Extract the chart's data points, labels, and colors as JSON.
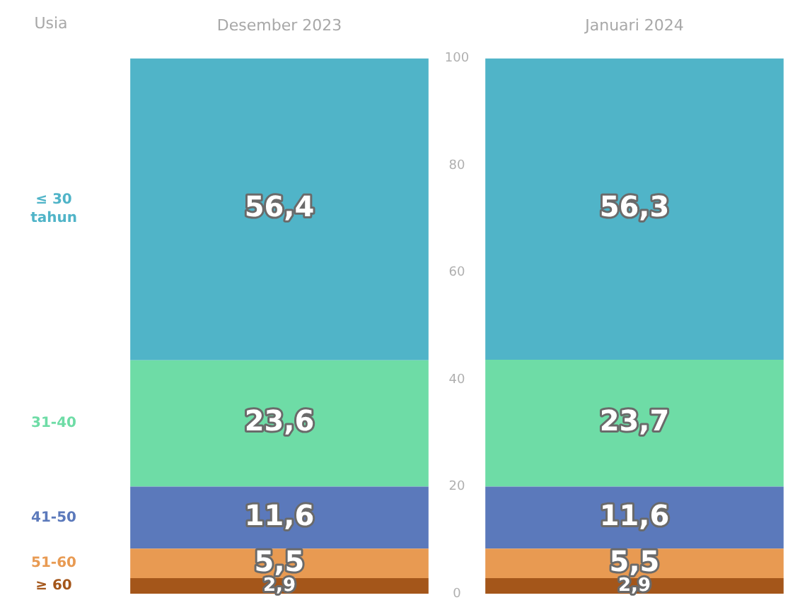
{
  "chart_data": {
    "type": "bar",
    "stacked": true,
    "legend_title": "Usia",
    "categories": [
      "Desember 2023",
      "Januari 2024"
    ],
    "series": [
      {
        "name": "≥ 60",
        "color": "#a4561a",
        "values": [
          2.9,
          2.9
        ],
        "value_labels": [
          "2,9",
          "2,9"
        ]
      },
      {
        "name": "51-60",
        "color": "#e89a52",
        "values": [
          5.5,
          5.5
        ],
        "value_labels": [
          "5,5",
          "5,5"
        ]
      },
      {
        "name": "41-50",
        "color": "#5b79bb",
        "values": [
          11.6,
          11.6
        ],
        "value_labels": [
          "11,6",
          "11,6"
        ]
      },
      {
        "name": "31-40",
        "color": "#6edca6",
        "values": [
          23.6,
          23.7
        ],
        "value_labels": [
          "23,6",
          "23,7"
        ]
      },
      {
        "name": "≤ 30 tahun",
        "color": "#50b4c8",
        "values": [
          56.4,
          56.3
        ],
        "value_labels": [
          "56,4",
          "56,3"
        ]
      }
    ],
    "ylim": [
      0,
      100
    ],
    "yticks": [
      0,
      20,
      40,
      60,
      80,
      100
    ]
  }
}
